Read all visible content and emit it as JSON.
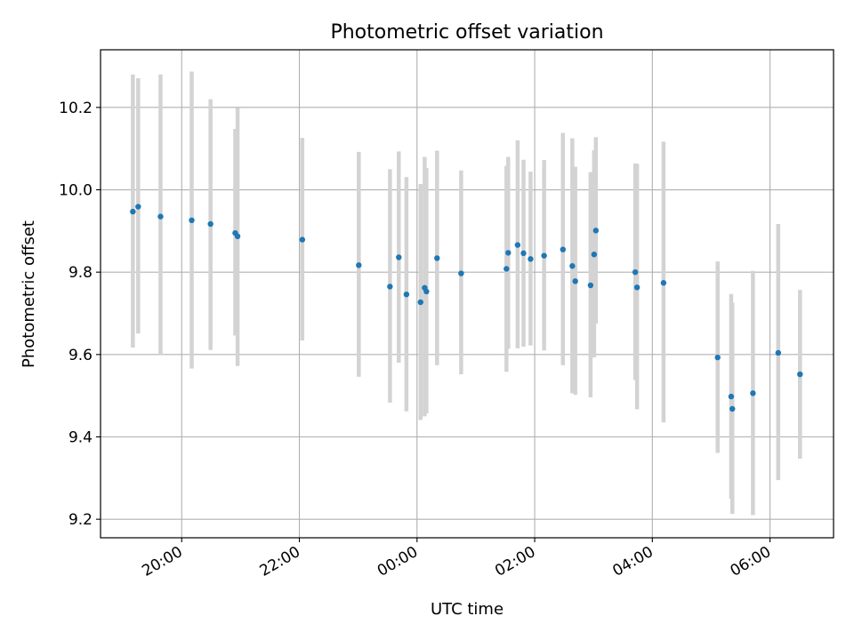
{
  "chart_data": {
    "type": "scatter",
    "title": "Photometric offset variation",
    "xlabel": "UTC time",
    "ylabel": "Photometric offset",
    "x_unit": "UTC time (hours; values past 24 are the following day)",
    "xlim": [
      18.62,
      31.08
    ],
    "ylim": [
      9.155,
      10.34
    ],
    "grid": true,
    "legend": "none",
    "colors": {
      "points": "#1f77b4",
      "errorbars": "#d3d3d3",
      "grid": "#b0b0b0"
    },
    "x_ticks": [
      {
        "value": 20,
        "label": "20:00"
      },
      {
        "value": 22,
        "label": "22:00"
      },
      {
        "value": 24,
        "label": "00:00"
      },
      {
        "value": 26,
        "label": "02:00"
      },
      {
        "value": 28,
        "label": "04:00"
      },
      {
        "value": 30,
        "label": "06:00"
      }
    ],
    "y_ticks": [
      {
        "value": 9.2,
        "label": "9.2"
      },
      {
        "value": 9.4,
        "label": "9.4"
      },
      {
        "value": 9.6,
        "label": "9.6"
      },
      {
        "value": 9.8,
        "label": "9.8"
      },
      {
        "value": 10.0,
        "label": "10.0"
      },
      {
        "value": 10.2,
        "label": "10.2"
      }
    ],
    "points": [
      {
        "x": 19.17,
        "y": 9.947,
        "err_low": 9.617,
        "err_high": 10.28
      },
      {
        "x": 19.26,
        "y": 9.959,
        "err_low": 9.651,
        "err_high": 10.271
      },
      {
        "x": 19.64,
        "y": 9.935,
        "err_low": 9.598,
        "err_high": 10.28
      },
      {
        "x": 20.17,
        "y": 9.926,
        "err_low": 9.566,
        "err_high": 10.287
      },
      {
        "x": 20.49,
        "y": 9.917,
        "err_low": 9.611,
        "err_high": 10.22
      },
      {
        "x": 20.91,
        "y": 9.895,
        "err_low": 9.646,
        "err_high": 10.148
      },
      {
        "x": 20.95,
        "y": 9.887,
        "err_low": 9.572,
        "err_high": 10.199
      },
      {
        "x": 22.05,
        "y": 9.879,
        "err_low": 9.634,
        "err_high": 10.126
      },
      {
        "x": 23.01,
        "y": 9.817,
        "err_low": 9.546,
        "err_high": 10.092
      },
      {
        "x": 23.54,
        "y": 9.765,
        "err_low": 9.483,
        "err_high": 10.05
      },
      {
        "x": 23.69,
        "y": 9.836,
        "err_low": 9.58,
        "err_high": 10.093
      },
      {
        "x": 23.82,
        "y": 9.746,
        "err_low": 9.462,
        "err_high": 10.031
      },
      {
        "x": 24.06,
        "y": 9.727,
        "err_low": 9.441,
        "err_high": 10.014
      },
      {
        "x": 24.13,
        "y": 9.762,
        "err_low": 9.45,
        "err_high": 10.08
      },
      {
        "x": 24.16,
        "y": 9.753,
        "err_low": 9.457,
        "err_high": 10.053
      },
      {
        "x": 24.34,
        "y": 9.834,
        "err_low": 9.574,
        "err_high": 10.095
      },
      {
        "x": 24.75,
        "y": 9.797,
        "err_low": 9.552,
        "err_high": 10.047
      },
      {
        "x": 25.52,
        "y": 9.808,
        "err_low": 9.558,
        "err_high": 10.058
      },
      {
        "x": 25.55,
        "y": 9.847,
        "err_low": 9.614,
        "err_high": 10.08
      },
      {
        "x": 25.71,
        "y": 9.866,
        "err_low": 9.615,
        "err_high": 10.12
      },
      {
        "x": 25.81,
        "y": 9.846,
        "err_low": 9.619,
        "err_high": 10.073
      },
      {
        "x": 25.93,
        "y": 9.832,
        "err_low": 9.622,
        "err_high": 10.044
      },
      {
        "x": 26.16,
        "y": 9.84,
        "err_low": 9.61,
        "err_high": 10.072
      },
      {
        "x": 26.48,
        "y": 9.855,
        "err_low": 9.574,
        "err_high": 10.138
      },
      {
        "x": 26.64,
        "y": 9.815,
        "err_low": 9.506,
        "err_high": 10.125
      },
      {
        "x": 26.69,
        "y": 9.778,
        "err_low": 9.502,
        "err_high": 10.056
      },
      {
        "x": 26.95,
        "y": 9.768,
        "err_low": 9.496,
        "err_high": 10.043
      },
      {
        "x": 27.01,
        "y": 9.843,
        "err_low": 9.593,
        "err_high": 10.096
      },
      {
        "x": 27.04,
        "y": 9.901,
        "err_low": 9.675,
        "err_high": 10.128
      },
      {
        "x": 27.71,
        "y": 9.8,
        "err_low": 9.538,
        "err_high": 10.064
      },
      {
        "x": 27.74,
        "y": 9.763,
        "err_low": 9.467,
        "err_high": 10.063
      },
      {
        "x": 28.19,
        "y": 9.774,
        "err_low": 9.435,
        "err_high": 10.117
      },
      {
        "x": 29.11,
        "y": 9.593,
        "err_low": 9.361,
        "err_high": 9.826
      },
      {
        "x": 29.34,
        "y": 9.498,
        "err_low": 9.25,
        "err_high": 9.747
      },
      {
        "x": 29.36,
        "y": 9.468,
        "err_low": 9.213,
        "err_high": 9.726
      },
      {
        "x": 29.71,
        "y": 9.506,
        "err_low": 9.21,
        "err_high": 9.803
      },
      {
        "x": 30.14,
        "y": 9.604,
        "err_low": 9.295,
        "err_high": 9.917
      },
      {
        "x": 30.51,
        "y": 9.552,
        "err_low": 9.347,
        "err_high": 9.757
      }
    ]
  }
}
